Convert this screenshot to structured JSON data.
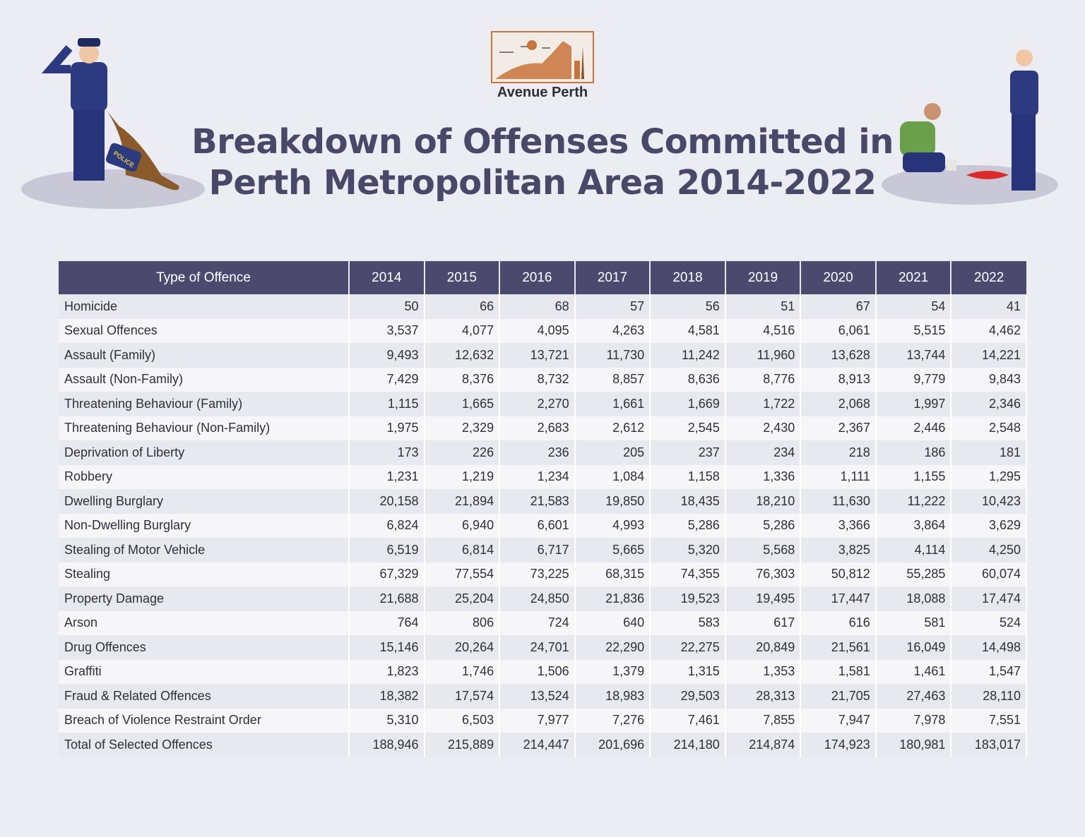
{
  "logo": {
    "text": "Avenue Perth"
  },
  "title": {
    "line1": "Breakdown of Offenses Committed in",
    "line2": "Perth Metropolitan Area 2014-2022"
  },
  "illustrations": {
    "left_dog_vest": "POLICE"
  },
  "colors": {
    "header": "#4b4a6e",
    "title": "#4a4868",
    "logo_accent": "#c8743a",
    "background": "#ececf3"
  },
  "chart_data": {
    "type": "table",
    "columns": [
      "Type of Offence",
      "2014",
      "2015",
      "2016",
      "2017",
      "2018",
      "2019",
      "2020",
      "2021",
      "2022"
    ],
    "rows": [
      [
        "Homicide",
        "50",
        "66",
        "68",
        "57",
        "56",
        "51",
        "67",
        "54",
        "41"
      ],
      [
        "Sexual Offences",
        "3,537",
        "4,077",
        "4,095",
        "4,263",
        "4,581",
        "4,516",
        "6,061",
        "5,515",
        "4,462"
      ],
      [
        "Assault (Family)",
        "9,493",
        "12,632",
        "13,721",
        "11,730",
        "11,242",
        "11,960",
        "13,628",
        "13,744",
        "14,221"
      ],
      [
        "Assault (Non-Family)",
        "7,429",
        "8,376",
        "8,732",
        "8,857",
        "8,636",
        "8,776",
        "8,913",
        "9,779",
        "9,843"
      ],
      [
        "Threatening Behaviour (Family)",
        "1,115",
        "1,665",
        "2,270",
        "1,661",
        "1,669",
        "1,722",
        "2,068",
        "1,997",
        "2,346"
      ],
      [
        "Threatening Behaviour (Non-Family)",
        "1,975",
        "2,329",
        "2,683",
        "2,612",
        "2,545",
        "2,430",
        "2,367",
        "2,446",
        "2,548"
      ],
      [
        "Deprivation of Liberty",
        "173",
        "226",
        "236",
        "205",
        "237",
        "234",
        "218",
        "186",
        "181"
      ],
      [
        "Robbery",
        "1,231",
        "1,219",
        "1,234",
        "1,084",
        "1,158",
        "1,336",
        "1,111",
        "1,155",
        "1,295"
      ],
      [
        "Dwelling Burglary",
        "20,158",
        "21,894",
        "21,583",
        "19,850",
        "18,435",
        "18,210",
        "11,630",
        "11,222",
        "10,423"
      ],
      [
        "Non-Dwelling Burglary",
        "6,824",
        "6,940",
        "6,601",
        "4,993",
        "5,286",
        "5,286",
        "3,366",
        "3,864",
        "3,629"
      ],
      [
        "Stealing of Motor Vehicle",
        "6,519",
        "6,814",
        "6,717",
        "5,665",
        "5,320",
        "5,568",
        "3,825",
        "4,114",
        "4,250"
      ],
      [
        "Stealing",
        "67,329",
        "77,554",
        "73,225",
        "68,315",
        "74,355",
        "76,303",
        "50,812",
        "55,285",
        "60,074"
      ],
      [
        "Property Damage",
        "21,688",
        "25,204",
        "24,850",
        "21,836",
        "19,523",
        "19,495",
        "17,447",
        "18,088",
        "17,474"
      ],
      [
        "Arson",
        "764",
        "806",
        "724",
        "640",
        "583",
        "617",
        "616",
        "581",
        "524"
      ],
      [
        "Drug Offences",
        "15,146",
        "20,264",
        "24,701",
        "22,290",
        "22,275",
        "20,849",
        "21,561",
        "16,049",
        "14,498"
      ],
      [
        "Graffiti",
        "1,823",
        "1,746",
        "1,506",
        "1,379",
        "1,315",
        "1,353",
        "1,581",
        "1,461",
        "1,547"
      ],
      [
        "Fraud & Related Offences",
        "18,382",
        "17,574",
        "13,524",
        "18,983",
        "29,503",
        "28,313",
        "21,705",
        "27,463",
        "28,110"
      ],
      [
        "Breach of Violence Restraint Order",
        "5,310",
        "6,503",
        "7,977",
        "7,276",
        "7,461",
        "7,855",
        "7,947",
        "7,978",
        "7,551"
      ],
      [
        "Total of Selected Offences",
        "188,946",
        "215,889",
        "214,447",
        "201,696",
        "214,180",
        "214,874",
        "174,923",
        "180,981",
        "183,017"
      ]
    ]
  }
}
